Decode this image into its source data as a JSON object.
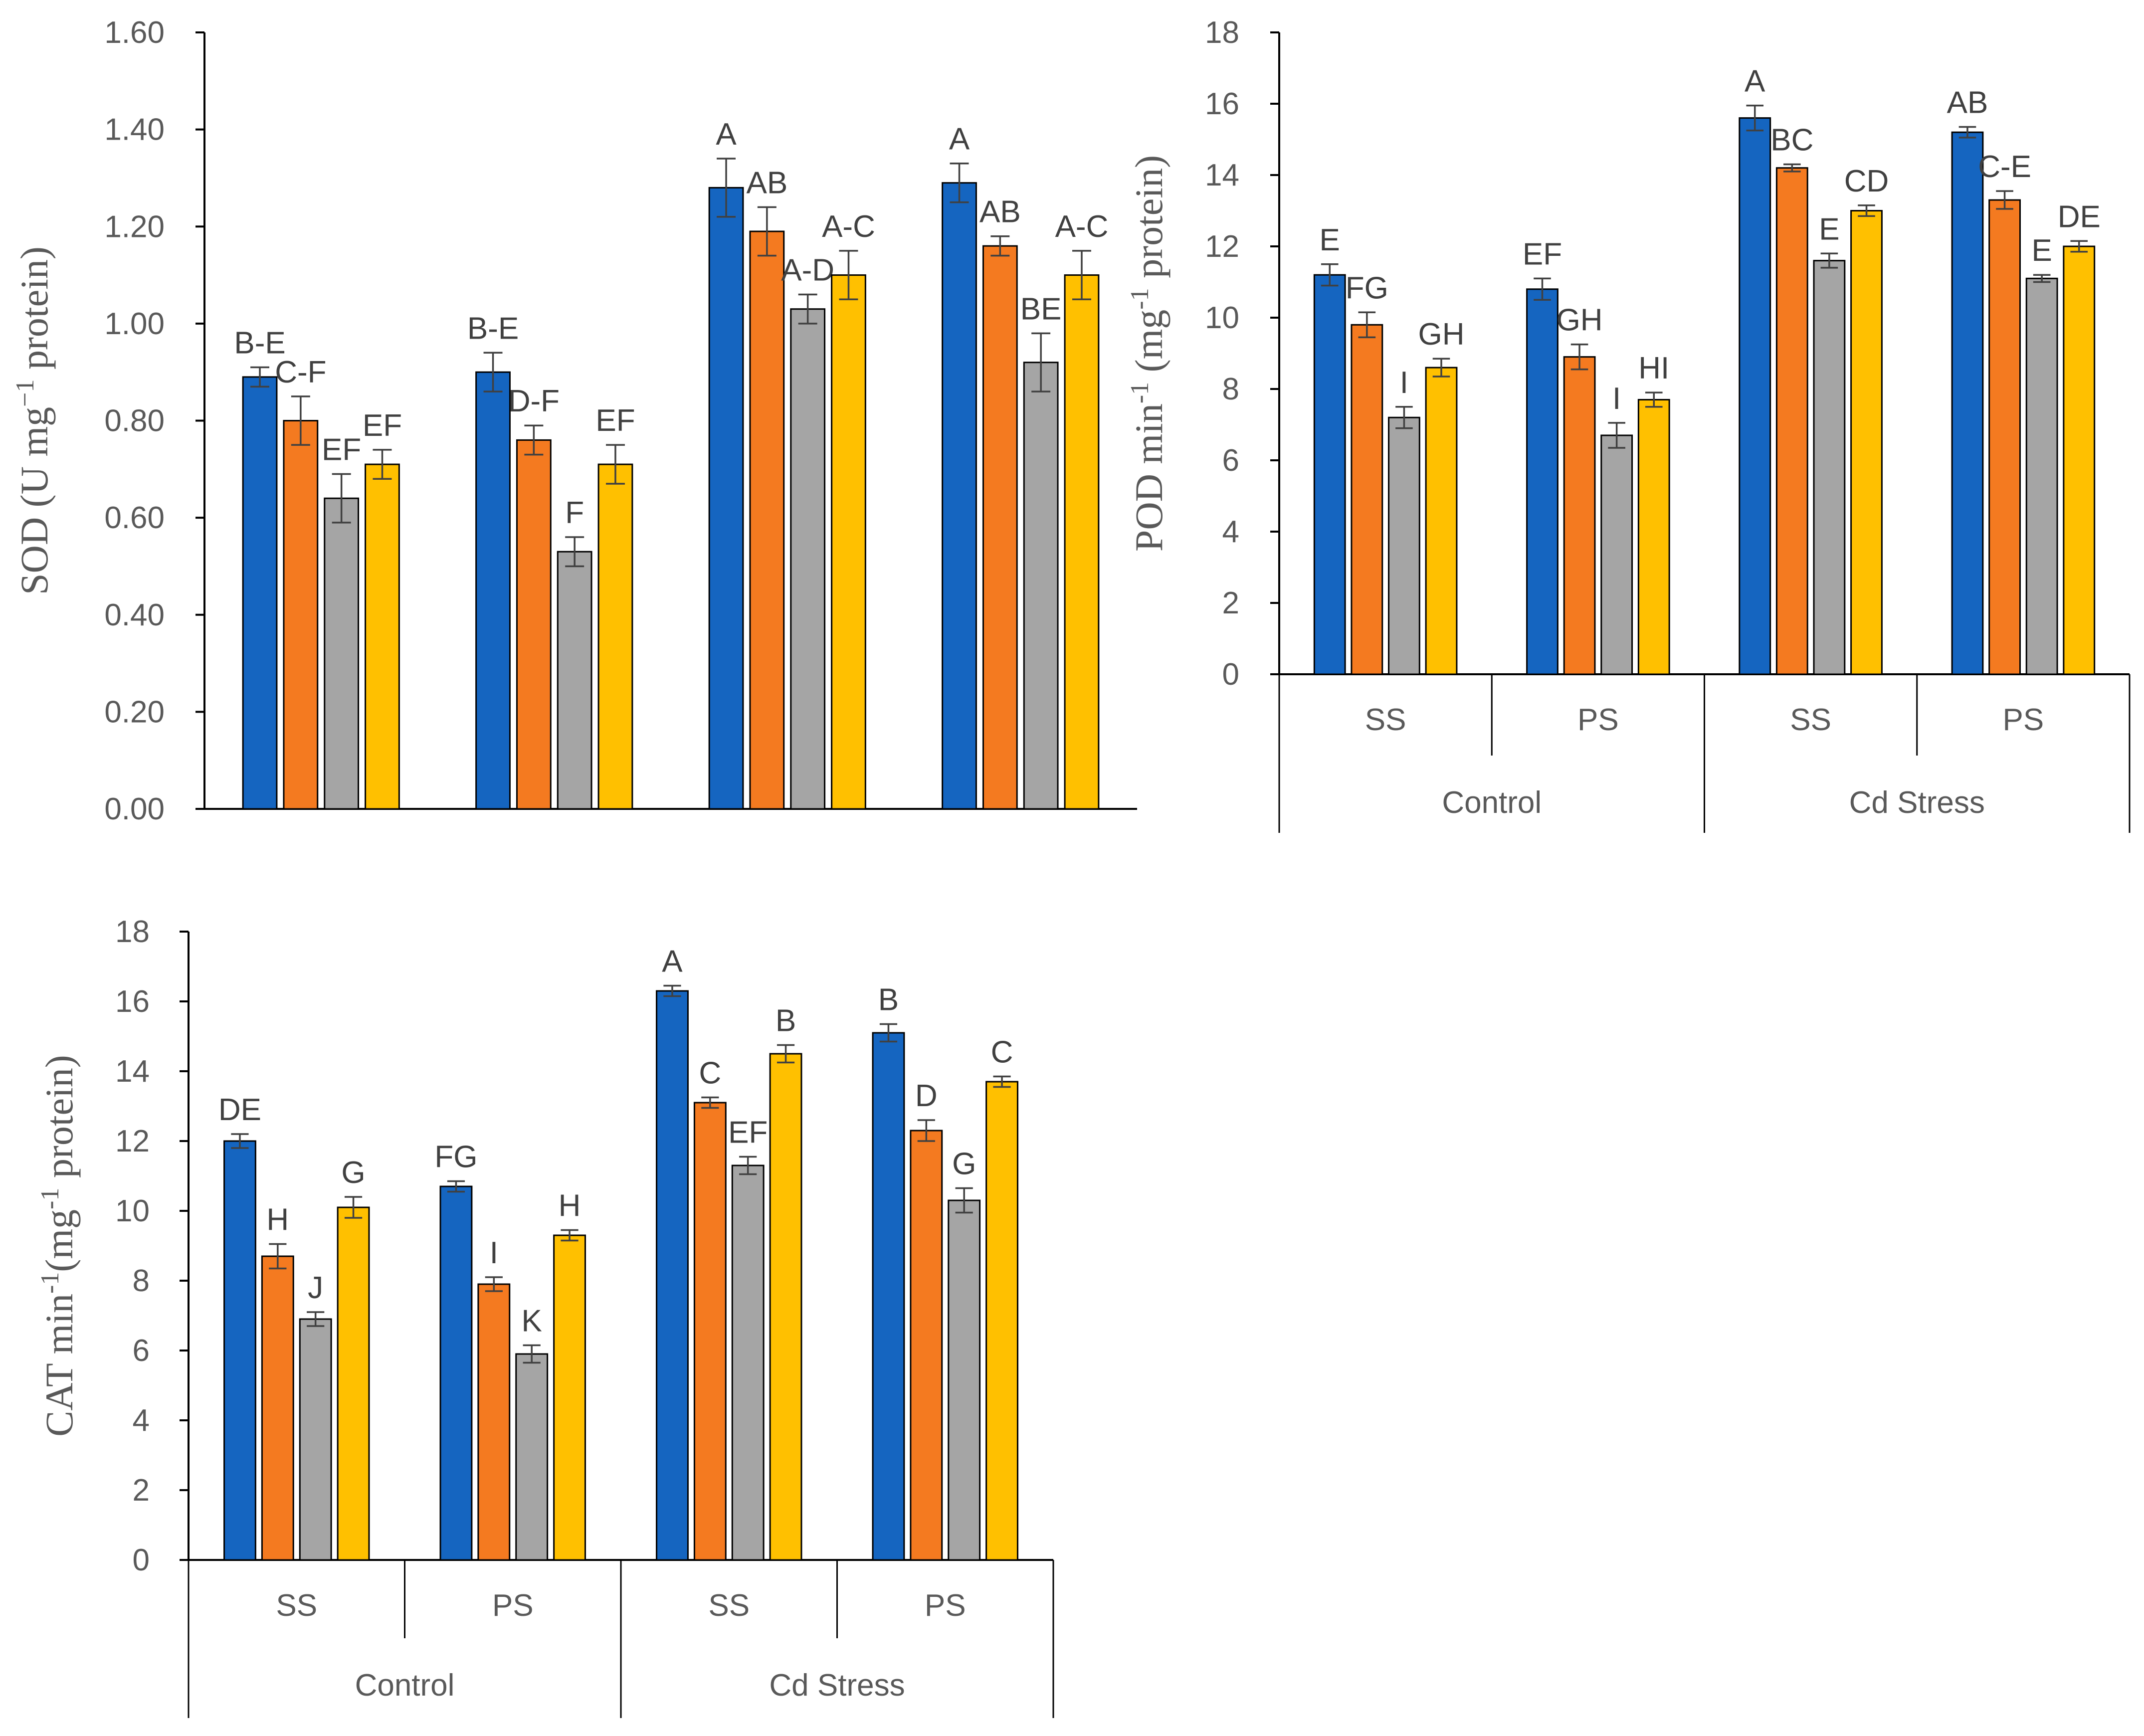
{
  "colors": {
    "series": [
      "#1565c0",
      "#f47a20",
      "#a5a5a5",
      "#ffc000"
    ],
    "axis": "#000000",
    "text": "#595959"
  },
  "chart_data": [
    {
      "id": "sod",
      "type": "bar",
      "title": "",
      "ylabel_main": "SOD (U mg",
      "ylabel_sup": "−1",
      "ylabel_end": " protein)",
      "ylim": [
        0,
        1.6
      ],
      "ytick_step": 0.2,
      "ytick_decimals": 2,
      "ytick_labels": [
        "0.00",
        "0.20",
        "0.40",
        "0.60",
        "0.80",
        "1.00",
        "1.20",
        "1.40",
        "1.60"
      ],
      "show_category_axis": false,
      "groups": [],
      "categories": [],
      "values": [
        [
          0.89,
          0.8,
          0.64,
          0.71
        ],
        [
          0.9,
          0.76,
          0.53,
          0.71
        ],
        [
          1.28,
          1.19,
          1.03,
          1.1
        ],
        [
          1.29,
          1.16,
          0.92,
          1.1
        ]
      ],
      "errors": [
        [
          0.02,
          0.05,
          0.05,
          0.03
        ],
        [
          0.04,
          0.03,
          0.03,
          0.04
        ],
        [
          0.06,
          0.05,
          0.03,
          0.05
        ],
        [
          0.04,
          0.02,
          0.06,
          0.05
        ]
      ],
      "letters": [
        [
          "B-E",
          "C-F",
          "EF",
          "EF"
        ],
        [
          "B-E",
          "D-F",
          "F",
          "EF"
        ],
        [
          "A",
          "AB",
          "A-D",
          "A-C"
        ],
        [
          "A",
          "AB",
          "BE",
          "A-C"
        ]
      ]
    },
    {
      "id": "pod",
      "type": "bar",
      "title": "",
      "ylabel_main": "POD min",
      "ylabel_sup": "-1",
      "ylabel_mid": " (mg",
      "ylabel_sup2": "-1",
      "ylabel_end": " protein)",
      "ylim": [
        0,
        18
      ],
      "ytick_step": 2,
      "ytick_decimals": 0,
      "ytick_labels": [
        "0",
        "2",
        "4",
        "6",
        "8",
        "10",
        "12",
        "14",
        "16",
        "18"
      ],
      "show_category_axis": true,
      "groups": [
        "Control",
        "Cd Stress"
      ],
      "categories": [
        "SS",
        "PS",
        "SS",
        "PS"
      ],
      "values": [
        [
          11.2,
          9.8,
          7.2,
          8.6
        ],
        [
          10.8,
          8.9,
          6.7,
          7.7
        ],
        [
          15.6,
          14.2,
          11.6,
          13.0
        ],
        [
          15.2,
          13.3,
          11.1,
          12.0
        ]
      ],
      "errors": [
        [
          0.3,
          0.35,
          0.3,
          0.25
        ],
        [
          0.3,
          0.35,
          0.35,
          0.2
        ],
        [
          0.35,
          0.1,
          0.2,
          0.15
        ],
        [
          0.15,
          0.25,
          0.1,
          0.15
        ]
      ],
      "letters": [
        [
          "E",
          "FG",
          "I",
          "GH"
        ],
        [
          "EF",
          "GH",
          "I",
          "HI"
        ],
        [
          "A",
          "BC",
          "E",
          "CD"
        ],
        [
          "AB",
          "C-E",
          "E",
          "DE"
        ]
      ]
    },
    {
      "id": "cat",
      "type": "bar",
      "title": "",
      "ylabel_main": "CAT min",
      "ylabel_sup": "-1",
      "ylabel_mid": "(mg",
      "ylabel_sup2": "-1",
      "ylabel_end": " protein)",
      "ylim": [
        0,
        18
      ],
      "ytick_step": 2,
      "ytick_decimals": 0,
      "ytick_labels": [
        "0",
        "2",
        "4",
        "6",
        "8",
        "10",
        "12",
        "14",
        "16",
        "18"
      ],
      "show_category_axis": true,
      "groups": [
        "Control",
        "Cd Stress"
      ],
      "categories": [
        "SS",
        "PS",
        "SS",
        "PS"
      ],
      "values": [
        [
          12.0,
          8.7,
          6.9,
          10.1
        ],
        [
          10.7,
          7.9,
          5.9,
          9.3
        ],
        [
          16.3,
          13.1,
          11.3,
          14.5
        ],
        [
          15.1,
          12.3,
          10.3,
          13.7
        ]
      ],
      "errors": [
        [
          0.2,
          0.35,
          0.2,
          0.3
        ],
        [
          0.15,
          0.2,
          0.25,
          0.15
        ],
        [
          0.15,
          0.15,
          0.25,
          0.25
        ],
        [
          0.25,
          0.3,
          0.35,
          0.15
        ]
      ],
      "letters": [
        [
          "DE",
          "H",
          "J",
          "G"
        ],
        [
          "FG",
          "I",
          "K",
          "H"
        ],
        [
          "A",
          "C",
          "EF",
          "B"
        ],
        [
          "B",
          "D",
          "G",
          "C"
        ]
      ]
    }
  ]
}
